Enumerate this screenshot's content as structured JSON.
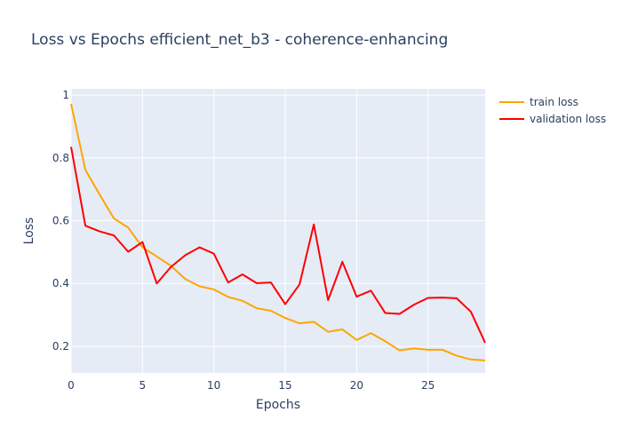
{
  "chart_data": {
    "type": "line",
    "title": "Loss vs Epochs efficient_net_b3 - coherence-enhancing",
    "xlabel": "Epochs",
    "ylabel": "Loss",
    "xlim": [
      0,
      29
    ],
    "ylim": [
      0.115,
      1.02
    ],
    "x_ticks": [
      0,
      5,
      10,
      15,
      20,
      25
    ],
    "y_ticks": [
      0.2,
      0.4,
      0.6,
      0.8,
      1
    ],
    "y_tick_labels": [
      "0.2",
      "0.4",
      "0.6",
      "0.8",
      "1"
    ],
    "grid": true,
    "legend_position": "top-right",
    "background_color": "#e5ecf6",
    "x": [
      0,
      1,
      2,
      3,
      4,
      5,
      6,
      7,
      8,
      9,
      10,
      11,
      12,
      13,
      14,
      15,
      16,
      17,
      18,
      19,
      20,
      21,
      22,
      23,
      24,
      25,
      26,
      27,
      28,
      29
    ],
    "series": [
      {
        "name": "train loss",
        "color": "#ffa500",
        "values": [
          0.972,
          0.762,
          0.683,
          0.607,
          0.578,
          0.515,
          0.486,
          0.456,
          0.414,
          0.391,
          0.381,
          0.357,
          0.345,
          0.321,
          0.313,
          0.29,
          0.273,
          0.278,
          0.246,
          0.254,
          0.22,
          0.242,
          0.216,
          0.187,
          0.193,
          0.189,
          0.189,
          0.17,
          0.158,
          0.155
        ]
      },
      {
        "name": "validation loss",
        "color": "#ff0000",
        "values": [
          0.835,
          0.584,
          0.566,
          0.553,
          0.501,
          0.532,
          0.4,
          0.453,
          0.49,
          0.515,
          0.495,
          0.403,
          0.429,
          0.401,
          0.403,
          0.334,
          0.397,
          0.588,
          0.347,
          0.469,
          0.358,
          0.377,
          0.306,
          0.303,
          0.332,
          0.354,
          0.355,
          0.353,
          0.31,
          0.211
        ]
      }
    ]
  }
}
